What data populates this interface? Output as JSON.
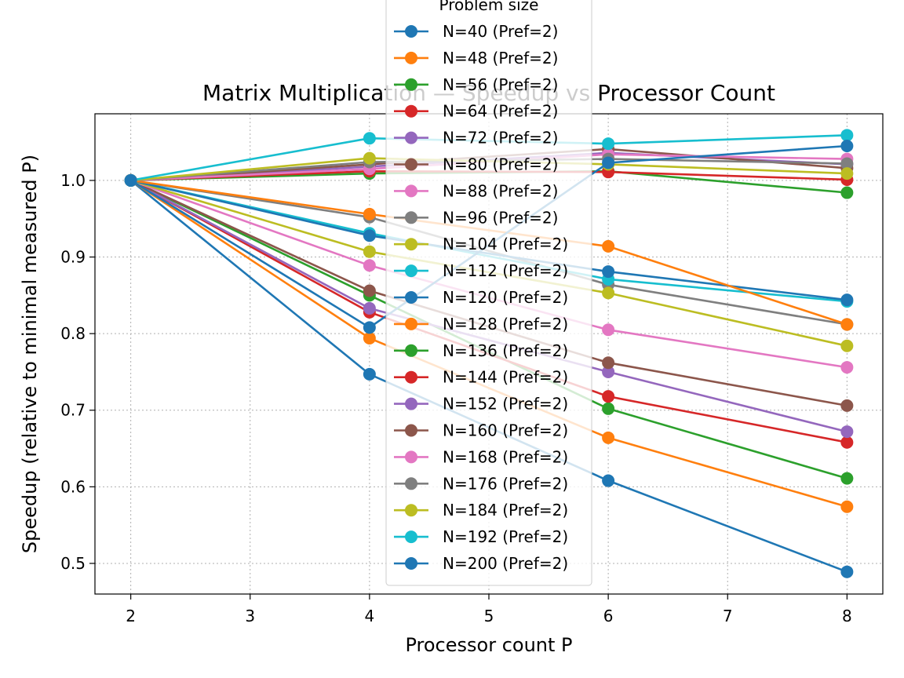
{
  "chart_data": {
    "type": "line",
    "title": "Matrix Multiplication — Speedup vs Processor Count",
    "xlabel": "Processor count P",
    "ylabel": "Speedup (relative to minimal measured P)",
    "x": [
      2,
      4,
      6,
      8
    ],
    "xticks": [
      "2",
      "3",
      "4",
      "5",
      "6",
      "7",
      "8"
    ],
    "yticks": [
      "0.5",
      "0.6",
      "0.7",
      "0.8",
      "0.9",
      "1.0"
    ],
    "xlim": [
      1.7,
      8.3
    ],
    "ylim": [
      0.46,
      1.087
    ],
    "grid": true,
    "legend_title": "Problem size",
    "legend_position": "top-center",
    "series": [
      {
        "name": "N=40 (Pref=2)",
        "color": "#1f77b4",
        "values": [
          1.0,
          0.747,
          0.608,
          0.489
        ]
      },
      {
        "name": "N=48 (Pref=2)",
        "color": "#ff7f0e",
        "values": [
          1.0,
          0.794,
          0.664,
          0.574
        ]
      },
      {
        "name": "N=56 (Pref=2)",
        "color": "#2ca02c",
        "values": [
          1.0,
          0.85,
          0.702,
          0.611
        ]
      },
      {
        "name": "N=64 (Pref=2)",
        "color": "#d62728",
        "values": [
          1.0,
          0.828,
          0.718,
          0.658
        ]
      },
      {
        "name": "N=72 (Pref=2)",
        "color": "#9467bd",
        "values": [
          1.0,
          0.833,
          0.75,
          0.672
        ]
      },
      {
        "name": "N=80 (Pref=2)",
        "color": "#8c564b",
        "values": [
          1.0,
          0.856,
          0.762,
          0.706
        ]
      },
      {
        "name": "N=88 (Pref=2)",
        "color": "#e377c2",
        "values": [
          1.0,
          0.889,
          0.805,
          0.756
        ]
      },
      {
        "name": "N=96 (Pref=2)",
        "color": "#7f7f7f",
        "values": [
          1.0,
          0.952,
          0.864,
          0.812
        ]
      },
      {
        "name": "N=104 (Pref=2)",
        "color": "#bcbd22",
        "values": [
          1.0,
          0.907,
          0.853,
          0.784
        ]
      },
      {
        "name": "N=112 (Pref=2)",
        "color": "#17becf",
        "values": [
          1.0,
          0.931,
          0.871,
          0.842
        ]
      },
      {
        "name": "N=120 (Pref=2)",
        "color": "#1f77b4",
        "values": [
          1.0,
          0.928,
          0.881,
          0.844
        ]
      },
      {
        "name": "N=128 (Pref=2)",
        "color": "#ff7f0e",
        "values": [
          1.0,
          0.956,
          0.914,
          0.812
        ]
      },
      {
        "name": "N=136 (Pref=2)",
        "color": "#2ca02c",
        "values": [
          1.0,
          1.009,
          1.012,
          0.984
        ]
      },
      {
        "name": "N=144 (Pref=2)",
        "color": "#d62728",
        "values": [
          1.0,
          1.012,
          1.011,
          1.001
        ]
      },
      {
        "name": "N=152 (Pref=2)",
        "color": "#9467bd",
        "values": [
          1.0,
          1.018,
          1.036,
          1.021
        ]
      },
      {
        "name": "N=160 (Pref=2)",
        "color": "#8c564b",
        "values": [
          1.0,
          1.021,
          1.041,
          1.016
        ]
      },
      {
        "name": "N=168 (Pref=2)",
        "color": "#e377c2",
        "values": [
          1.0,
          1.015,
          1.034,
          1.028
        ]
      },
      {
        "name": "N=176 (Pref=2)",
        "color": "#7f7f7f",
        "values": [
          1.0,
          1.024,
          1.028,
          1.022
        ]
      },
      {
        "name": "N=184 (Pref=2)",
        "color": "#bcbd22",
        "values": [
          1.0,
          1.029,
          1.021,
          1.009
        ]
      },
      {
        "name": "N=192 (Pref=2)",
        "color": "#17becf",
        "values": [
          1.0,
          1.055,
          1.048,
          1.059
        ]
      },
      {
        "name": "N=200 (Pref=2)",
        "color": "#1f77b4",
        "values": [
          1.0,
          0.808,
          1.023,
          1.045
        ]
      }
    ]
  }
}
